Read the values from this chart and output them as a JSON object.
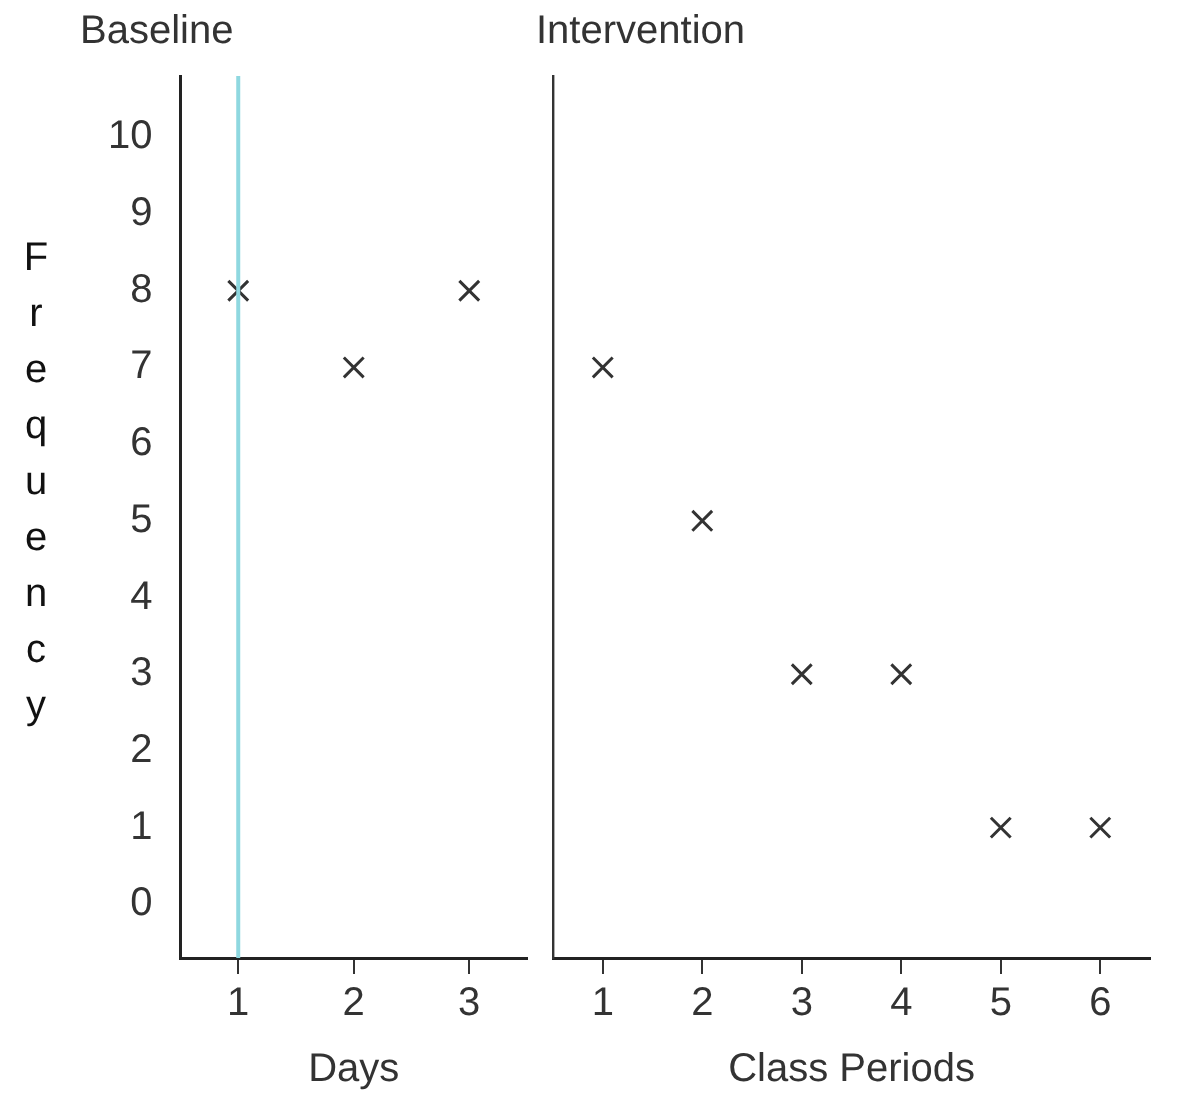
{
  "chart_data": [
    {
      "type": "scatter",
      "title": "Baseline",
      "xlabel": "Days",
      "ylabel": "Frequency",
      "categories": [
        "1",
        "2",
        "3"
      ],
      "series": [
        {
          "color": "#333333",
          "values": [
            8,
            7,
            8
          ]
        }
      ],
      "marker": "cross",
      "ylim": [
        -0.7,
        10.8
      ],
      "yticks": [
        0,
        1,
        2,
        3,
        4,
        5,
        6,
        7,
        8,
        9,
        10
      ],
      "ref_lines": [
        {
          "axis": "x",
          "value": "1",
          "color": "#8fd8e0",
          "line_style": "solid"
        }
      ],
      "grid": false,
      "legend": false
    },
    {
      "type": "scatter",
      "title": "Intervention",
      "xlabel": "Class Periods",
      "categories": [
        "1",
        "2",
        "3",
        "4",
        "5",
        "6"
      ],
      "series": [
        {
          "color": "#333333",
          "values": [
            7,
            5,
            3,
            3,
            1,
            1
          ]
        }
      ],
      "marker": "cross",
      "ylim": [
        -0.7,
        10.8
      ],
      "tick_labels": "x",
      "grid": false,
      "legend": false
    }
  ]
}
